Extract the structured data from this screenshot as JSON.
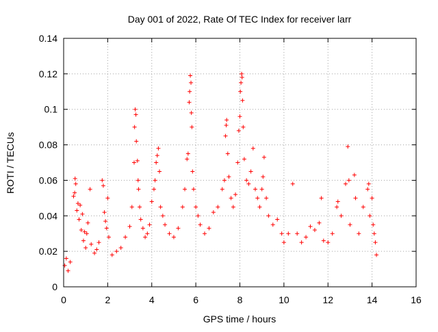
{
  "chart_data": {
    "type": "scatter",
    "title": "Day 001 of 2022, Rate Of TEC Index for receiver larr",
    "xlabel": "GPS time / hours",
    "ylabel": "ROTI / TECUs",
    "xlim": [
      0,
      16
    ],
    "ylim": [
      0,
      0.14
    ],
    "xticks": [
      "0",
      "2",
      "4",
      "6",
      "8",
      "10",
      "12",
      "14",
      "16"
    ],
    "yticks": [
      "0",
      "0.02",
      "0.04",
      "0.06",
      "0.08",
      "0.1",
      "0.12",
      "0.14"
    ],
    "grid": true,
    "legend": "none",
    "marker": "+",
    "color": "#ff0000",
    "series": [
      {
        "points": [
          [
            0.05,
            0.012
          ],
          [
            0.12,
            0.016
          ],
          [
            0.2,
            0.009
          ],
          [
            0.3,
            0.014
          ],
          [
            0.45,
            0.051
          ],
          [
            0.5,
            0.053
          ],
          [
            0.52,
            0.061
          ],
          [
            0.55,
            0.058
          ],
          [
            0.6,
            0.043
          ],
          [
            0.65,
            0.047
          ],
          [
            0.7,
            0.038
          ],
          [
            0.75,
            0.046
          ],
          [
            0.8,
            0.032
          ],
          [
            0.85,
            0.041
          ],
          [
            0.9,
            0.026
          ],
          [
            0.95,
            0.031
          ],
          [
            1.0,
            0.022
          ],
          [
            1.05,
            0.03
          ],
          [
            1.1,
            0.036
          ],
          [
            1.2,
            0.055
          ],
          [
            1.25,
            0.024
          ],
          [
            1.4,
            0.019
          ],
          [
            1.5,
            0.021
          ],
          [
            1.6,
            0.025
          ],
          [
            1.75,
            0.06
          ],
          [
            1.8,
            0.057
          ],
          [
            1.85,
            0.042
          ],
          [
            1.9,
            0.037
          ],
          [
            1.95,
            0.033
          ],
          [
            2.0,
            0.05
          ],
          [
            2.05,
            0.028
          ],
          [
            2.2,
            0.018
          ],
          [
            2.4,
            0.02
          ],
          [
            2.6,
            0.022
          ],
          [
            2.8,
            0.028
          ],
          [
            3.0,
            0.034
          ],
          [
            3.1,
            0.045
          ],
          [
            3.2,
            0.07
          ],
          [
            3.22,
            0.09
          ],
          [
            3.25,
            0.1
          ],
          [
            3.28,
            0.097
          ],
          [
            3.3,
            0.082
          ],
          [
            3.35,
            0.071
          ],
          [
            3.38,
            0.06
          ],
          [
            3.4,
            0.055
          ],
          [
            3.45,
            0.045
          ],
          [
            3.5,
            0.038
          ],
          [
            3.6,
            0.033
          ],
          [
            3.7,
            0.028
          ],
          [
            3.8,
            0.03
          ],
          [
            3.9,
            0.035
          ],
          [
            4.0,
            0.048
          ],
          [
            4.1,
            0.055
          ],
          [
            4.15,
            0.06
          ],
          [
            4.2,
            0.07
          ],
          [
            4.25,
            0.074
          ],
          [
            4.3,
            0.078
          ],
          [
            4.35,
            0.065
          ],
          [
            4.4,
            0.045
          ],
          [
            4.5,
            0.04
          ],
          [
            4.6,
            0.035
          ],
          [
            4.8,
            0.03
          ],
          [
            5.0,
            0.028
          ],
          [
            5.2,
            0.033
          ],
          [
            5.4,
            0.045
          ],
          [
            5.5,
            0.055
          ],
          [
            5.6,
            0.072
          ],
          [
            5.65,
            0.075
          ],
          [
            5.7,
            0.104
          ],
          [
            5.72,
            0.11
          ],
          [
            5.75,
            0.119
          ],
          [
            5.78,
            0.115
          ],
          [
            5.8,
            0.098
          ],
          [
            5.82,
            0.09
          ],
          [
            5.85,
            0.065
          ],
          [
            5.9,
            0.055
          ],
          [
            6.0,
            0.045
          ],
          [
            6.1,
            0.04
          ],
          [
            6.2,
            0.035
          ],
          [
            6.4,
            0.03
          ],
          [
            6.6,
            0.033
          ],
          [
            6.8,
            0.042
          ],
          [
            7.0,
            0.045
          ],
          [
            7.2,
            0.055
          ],
          [
            7.3,
            0.06
          ],
          [
            7.35,
            0.085
          ],
          [
            7.38,
            0.091
          ],
          [
            7.4,
            0.094
          ],
          [
            7.45,
            0.075
          ],
          [
            7.5,
            0.062
          ],
          [
            7.6,
            0.05
          ],
          [
            7.7,
            0.045
          ],
          [
            7.8,
            0.052
          ],
          [
            7.9,
            0.07
          ],
          [
            7.95,
            0.088
          ],
          [
            8.0,
            0.096
          ],
          [
            8.02,
            0.11
          ],
          [
            8.05,
            0.115
          ],
          [
            8.08,
            0.12
          ],
          [
            8.1,
            0.118
          ],
          [
            8.12,
            0.105
          ],
          [
            8.15,
            0.09
          ],
          [
            8.2,
            0.072
          ],
          [
            8.3,
            0.06
          ],
          [
            8.4,
            0.058
          ],
          [
            8.5,
            0.065
          ],
          [
            8.6,
            0.078
          ],
          [
            8.7,
            0.055
          ],
          [
            8.8,
            0.05
          ],
          [
            8.9,
            0.045
          ],
          [
            9.0,
            0.055
          ],
          [
            9.05,
            0.062
          ],
          [
            9.1,
            0.073
          ],
          [
            9.2,
            0.05
          ],
          [
            9.3,
            0.04
          ],
          [
            9.5,
            0.035
          ],
          [
            9.7,
            0.038
          ],
          [
            9.9,
            0.03
          ],
          [
            10.0,
            0.025
          ],
          [
            10.2,
            0.03
          ],
          [
            10.4,
            0.058
          ],
          [
            10.6,
            0.03
          ],
          [
            10.8,
            0.025
          ],
          [
            11.0,
            0.028
          ],
          [
            11.2,
            0.034
          ],
          [
            11.4,
            0.032
          ],
          [
            11.6,
            0.036
          ],
          [
            11.7,
            0.05
          ],
          [
            11.8,
            0.026
          ],
          [
            12.0,
            0.025
          ],
          [
            12.2,
            0.03
          ],
          [
            12.4,
            0.045
          ],
          [
            12.45,
            0.048
          ],
          [
            12.6,
            0.04
          ],
          [
            12.8,
            0.058
          ],
          [
            12.9,
            0.079
          ],
          [
            12.95,
            0.06
          ],
          [
            13.0,
            0.035
          ],
          [
            13.2,
            0.063
          ],
          [
            13.25,
            0.05
          ],
          [
            13.4,
            0.03
          ],
          [
            13.6,
            0.045
          ],
          [
            13.8,
            0.055
          ],
          [
            13.85,
            0.058
          ],
          [
            13.9,
            0.04
          ],
          [
            14.0,
            0.05
          ],
          [
            14.05,
            0.035
          ],
          [
            14.1,
            0.03
          ],
          [
            14.15,
            0.025
          ],
          [
            14.2,
            0.018
          ]
        ]
      }
    ]
  }
}
